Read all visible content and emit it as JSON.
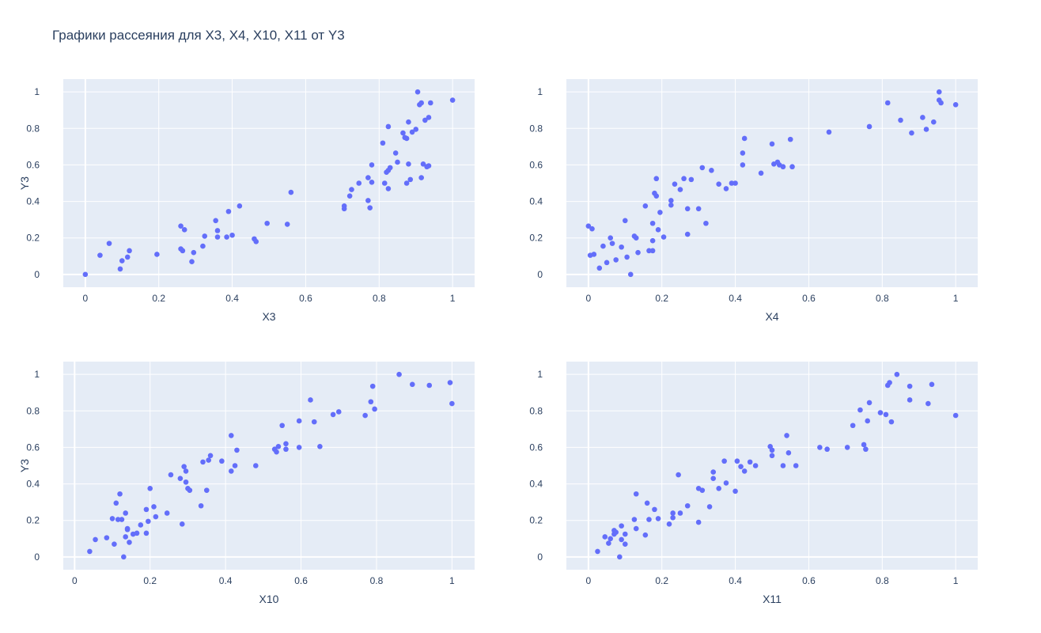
{
  "title": "Графики рассеяния для X3, X4, X10, X11 от Y3",
  "colors": {
    "marker": "#636efa",
    "plot_background": "#e5ecf6",
    "grid": "#ffffff",
    "text": "#2a3f5f"
  },
  "chart_data": [
    {
      "type": "scatter",
      "xlabel": "X3",
      "ylabel": "Y3",
      "xlim": [
        -0.06,
        1.06
      ],
      "ylim": [
        -0.07,
        1.07
      ],
      "xticks": [
        0,
        0.2,
        0.4,
        0.6,
        0.8,
        1
      ],
      "xtick_labels": [
        "0",
        "0.2",
        "0.4",
        "0.6",
        "0.8",
        "1"
      ],
      "yticks": [
        0,
        0.2,
        0.4,
        0.6,
        0.8,
        1
      ],
      "ytick_labels": [
        "0",
        "0.2",
        "0.4",
        "0.6",
        "0.8",
        "1"
      ],
      "grid": true,
      "points": [
        [
          0.0,
          0.0
        ],
        [
          0.04,
          0.105
        ],
        [
          0.065,
          0.17
        ],
        [
          0.095,
          0.03
        ],
        [
          0.1,
          0.075
        ],
        [
          0.115,
          0.095
        ],
        [
          0.12,
          0.13
        ],
        [
          0.195,
          0.11
        ],
        [
          0.26,
          0.14
        ],
        [
          0.26,
          0.265
        ],
        [
          0.265,
          0.13
        ],
        [
          0.27,
          0.245
        ],
        [
          0.29,
          0.07
        ],
        [
          0.295,
          0.12
        ],
        [
          0.32,
          0.155
        ],
        [
          0.325,
          0.21
        ],
        [
          0.355,
          0.295
        ],
        [
          0.36,
          0.24
        ],
        [
          0.36,
          0.205
        ],
        [
          0.385,
          0.205
        ],
        [
          0.39,
          0.345
        ],
        [
          0.4,
          0.215
        ],
        [
          0.42,
          0.375
        ],
        [
          0.46,
          0.195
        ],
        [
          0.465,
          0.18
        ],
        [
          0.495,
          0.28
        ],
        [
          0.55,
          0.275
        ],
        [
          0.56,
          0.45
        ],
        [
          0.705,
          0.375
        ],
        [
          0.705,
          0.36
        ],
        [
          0.72,
          0.43
        ],
        [
          0.725,
          0.465
        ],
        [
          0.745,
          0.5
        ],
        [
          0.77,
          0.53
        ],
        [
          0.77,
          0.405
        ],
        [
          0.775,
          0.365
        ],
        [
          0.78,
          0.6
        ],
        [
          0.78,
          0.505
        ],
        [
          0.81,
          0.72
        ],
        [
          0.815,
          0.5
        ],
        [
          0.82,
          0.56
        ],
        [
          0.825,
          0.47
        ],
        [
          0.825,
          0.57
        ],
        [
          0.825,
          0.81
        ],
        [
          0.83,
          0.585
        ],
        [
          0.845,
          0.665
        ],
        [
          0.85,
          0.615
        ],
        [
          0.865,
          0.775
        ],
        [
          0.87,
          0.75
        ],
        [
          0.875,
          0.5
        ],
        [
          0.875,
          0.745
        ],
        [
          0.88,
          0.605
        ],
        [
          0.88,
          0.835
        ],
        [
          0.885,
          0.52
        ],
        [
          0.89,
          0.78
        ],
        [
          0.9,
          0.795
        ],
        [
          0.905,
          1.0
        ],
        [
          0.91,
          0.93
        ],
        [
          0.915,
          0.94
        ],
        [
          0.915,
          0.53
        ],
        [
          0.92,
          0.605
        ],
        [
          0.925,
          0.845
        ],
        [
          0.93,
          0.59
        ],
        [
          0.935,
          0.86
        ],
        [
          0.935,
          0.595
        ],
        [
          0.94,
          0.94
        ],
        [
          1.0,
          0.955
        ]
      ]
    },
    {
      "type": "scatter",
      "xlabel": "X4",
      "ylabel": "",
      "xlim": [
        -0.06,
        1.06
      ],
      "ylim": [
        -0.07,
        1.07
      ],
      "xticks": [
        0,
        0.2,
        0.4,
        0.6,
        0.8,
        1
      ],
      "xtick_labels": [
        "0",
        "0.2",
        "0.4",
        "0.6",
        "0.8",
        "1"
      ],
      "yticks": [
        0,
        0.2,
        0.4,
        0.6,
        0.8,
        1
      ],
      "ytick_labels": [
        "0",
        "0.2",
        "0.4",
        "0.6",
        "0.8",
        "1"
      ],
      "grid": true,
      "points": [
        [
          0.0,
          0.265
        ],
        [
          0.005,
          0.105
        ],
        [
          0.01,
          0.25
        ],
        [
          0.015,
          0.11
        ],
        [
          0.03,
          0.035
        ],
        [
          0.04,
          0.155
        ],
        [
          0.05,
          0.065
        ],
        [
          0.06,
          0.2
        ],
        [
          0.065,
          0.17
        ],
        [
          0.075,
          0.08
        ],
        [
          0.09,
          0.15
        ],
        [
          0.1,
          0.295
        ],
        [
          0.105,
          0.095
        ],
        [
          0.115,
          0.0
        ],
        [
          0.125,
          0.21
        ],
        [
          0.13,
          0.2
        ],
        [
          0.135,
          0.12
        ],
        [
          0.155,
          0.375
        ],
        [
          0.165,
          0.13
        ],
        [
          0.175,
          0.185
        ],
        [
          0.175,
          0.13
        ],
        [
          0.175,
          0.28
        ],
        [
          0.18,
          0.445
        ],
        [
          0.185,
          0.525
        ],
        [
          0.185,
          0.43
        ],
        [
          0.19,
          0.245
        ],
        [
          0.195,
          0.34
        ],
        [
          0.205,
          0.205
        ],
        [
          0.225,
          0.38
        ],
        [
          0.225,
          0.405
        ],
        [
          0.235,
          0.495
        ],
        [
          0.25,
          0.465
        ],
        [
          0.26,
          0.525
        ],
        [
          0.27,
          0.36
        ],
        [
          0.27,
          0.22
        ],
        [
          0.28,
          0.52
        ],
        [
          0.3,
          0.36
        ],
        [
          0.31,
          0.585
        ],
        [
          0.32,
          0.28
        ],
        [
          0.335,
          0.57
        ],
        [
          0.355,
          0.495
        ],
        [
          0.375,
          0.47
        ],
        [
          0.39,
          0.5
        ],
        [
          0.4,
          0.5
        ],
        [
          0.42,
          0.6
        ],
        [
          0.42,
          0.665
        ],
        [
          0.425,
          0.745
        ],
        [
          0.47,
          0.555
        ],
        [
          0.5,
          0.715
        ],
        [
          0.505,
          0.605
        ],
        [
          0.515,
          0.615
        ],
        [
          0.52,
          0.6
        ],
        [
          0.53,
          0.59
        ],
        [
          0.55,
          0.74
        ],
        [
          0.555,
          0.59
        ],
        [
          0.655,
          0.78
        ],
        [
          0.765,
          0.81
        ],
        [
          0.815,
          0.94
        ],
        [
          0.85,
          0.845
        ],
        [
          0.88,
          0.775
        ],
        [
          0.91,
          0.86
        ],
        [
          0.92,
          0.795
        ],
        [
          0.94,
          0.835
        ],
        [
          0.955,
          1.0
        ],
        [
          0.955,
          0.955
        ],
        [
          0.96,
          0.94
        ],
        [
          1.0,
          0.93
        ]
      ]
    },
    {
      "type": "scatter",
      "xlabel": "X10",
      "ylabel": "Y3",
      "xlim": [
        -0.03,
        1.06
      ],
      "ylim": [
        -0.07,
        1.07
      ],
      "xticks": [
        0,
        0.2,
        0.4,
        0.6,
        0.8,
        1
      ],
      "xtick_labels": [
        "0",
        "0.2",
        "0.4",
        "0.6",
        "0.8",
        "1"
      ],
      "yticks": [
        0,
        0.2,
        0.4,
        0.6,
        0.8,
        1
      ],
      "ytick_labels": [
        "0",
        "0.2",
        "0.4",
        "0.6",
        "0.8",
        "1"
      ],
      "grid": true,
      "points": [
        [
          0.04,
          0.03
        ],
        [
          0.055,
          0.095
        ],
        [
          0.085,
          0.105
        ],
        [
          0.1,
          0.21
        ],
        [
          0.105,
          0.07
        ],
        [
          0.11,
          0.295
        ],
        [
          0.115,
          0.205
        ],
        [
          0.12,
          0.345
        ],
        [
          0.125,
          0.205
        ],
        [
          0.13,
          0.0
        ],
        [
          0.135,
          0.24
        ],
        [
          0.135,
          0.11
        ],
        [
          0.14,
          0.15
        ],
        [
          0.14,
          0.155
        ],
        [
          0.145,
          0.08
        ],
        [
          0.155,
          0.125
        ],
        [
          0.165,
          0.13
        ],
        [
          0.175,
          0.175
        ],
        [
          0.19,
          0.26
        ],
        [
          0.19,
          0.13
        ],
        [
          0.195,
          0.195
        ],
        [
          0.2,
          0.375
        ],
        [
          0.21,
          0.275
        ],
        [
          0.215,
          0.22
        ],
        [
          0.245,
          0.24
        ],
        [
          0.255,
          0.45
        ],
        [
          0.28,
          0.43
        ],
        [
          0.285,
          0.18
        ],
        [
          0.29,
          0.495
        ],
        [
          0.295,
          0.47
        ],
        [
          0.295,
          0.41
        ],
        [
          0.3,
          0.375
        ],
        [
          0.305,
          0.365
        ],
        [
          0.335,
          0.28
        ],
        [
          0.34,
          0.52
        ],
        [
          0.35,
          0.365
        ],
        [
          0.355,
          0.53
        ],
        [
          0.36,
          0.555
        ],
        [
          0.39,
          0.525
        ],
        [
          0.415,
          0.665
        ],
        [
          0.415,
          0.47
        ],
        [
          0.425,
          0.5
        ],
        [
          0.43,
          0.585
        ],
        [
          0.48,
          0.5
        ],
        [
          0.53,
          0.59
        ],
        [
          0.535,
          0.575
        ],
        [
          0.54,
          0.605
        ],
        [
          0.55,
          0.72
        ],
        [
          0.56,
          0.62
        ],
        [
          0.56,
          0.59
        ],
        [
          0.595,
          0.6
        ],
        [
          0.595,
          0.745
        ],
        [
          0.625,
          0.86
        ],
        [
          0.635,
          0.74
        ],
        [
          0.65,
          0.605
        ],
        [
          0.685,
          0.78
        ],
        [
          0.7,
          0.795
        ],
        [
          0.77,
          0.775
        ],
        [
          0.785,
          0.85
        ],
        [
          0.79,
          0.935
        ],
        [
          0.795,
          0.81
        ],
        [
          0.86,
          1.0
        ],
        [
          0.895,
          0.945
        ],
        [
          0.94,
          0.94
        ],
        [
          0.995,
          0.955
        ],
        [
          1.0,
          0.84
        ]
      ]
    },
    {
      "type": "scatter",
      "xlabel": "X11",
      "ylabel": "",
      "xlim": [
        -0.06,
        1.06
      ],
      "ylim": [
        -0.07,
        1.07
      ],
      "xticks": [
        0,
        0.2,
        0.4,
        0.6,
        0.8,
        1
      ],
      "xtick_labels": [
        "0",
        "0.2",
        "0.4",
        "0.6",
        "0.8",
        "1"
      ],
      "yticks": [
        0,
        0.2,
        0.4,
        0.6,
        0.8,
        1
      ],
      "ytick_labels": [
        "0",
        "0.2",
        "0.4",
        "0.6",
        "0.8",
        "1"
      ],
      "grid": true,
      "points": [
        [
          0.025,
          0.03
        ],
        [
          0.045,
          0.11
        ],
        [
          0.055,
          0.075
        ],
        [
          0.06,
          0.1
        ],
        [
          0.07,
          0.125
        ],
        [
          0.07,
          0.145
        ],
        [
          0.075,
          0.135
        ],
        [
          0.085,
          0.0
        ],
        [
          0.09,
          0.17
        ],
        [
          0.09,
          0.095
        ],
        [
          0.1,
          0.07
        ],
        [
          0.1,
          0.125
        ],
        [
          0.125,
          0.205
        ],
        [
          0.13,
          0.155
        ],
        [
          0.13,
          0.345
        ],
        [
          0.155,
          0.12
        ],
        [
          0.16,
          0.295
        ],
        [
          0.165,
          0.205
        ],
        [
          0.18,
          0.26
        ],
        [
          0.19,
          0.21
        ],
        [
          0.22,
          0.18
        ],
        [
          0.23,
          0.24
        ],
        [
          0.23,
          0.215
        ],
        [
          0.245,
          0.45
        ],
        [
          0.25,
          0.24
        ],
        [
          0.27,
          0.28
        ],
        [
          0.3,
          0.375
        ],
        [
          0.3,
          0.19
        ],
        [
          0.31,
          0.365
        ],
        [
          0.33,
          0.275
        ],
        [
          0.34,
          0.465
        ],
        [
          0.34,
          0.43
        ],
        [
          0.355,
          0.375
        ],
        [
          0.37,
          0.525
        ],
        [
          0.375,
          0.405
        ],
        [
          0.4,
          0.36
        ],
        [
          0.405,
          0.525
        ],
        [
          0.415,
          0.495
        ],
        [
          0.425,
          0.47
        ],
        [
          0.44,
          0.52
        ],
        [
          0.455,
          0.5
        ],
        [
          0.495,
          0.605
        ],
        [
          0.5,
          0.555
        ],
        [
          0.5,
          0.585
        ],
        [
          0.53,
          0.5
        ],
        [
          0.54,
          0.665
        ],
        [
          0.545,
          0.57
        ],
        [
          0.565,
          0.5
        ],
        [
          0.63,
          0.6
        ],
        [
          0.65,
          0.59
        ],
        [
          0.705,
          0.6
        ],
        [
          0.72,
          0.72
        ],
        [
          0.74,
          0.805
        ],
        [
          0.75,
          0.615
        ],
        [
          0.755,
          0.59
        ],
        [
          0.76,
          0.745
        ],
        [
          0.765,
          0.845
        ],
        [
          0.795,
          0.79
        ],
        [
          0.81,
          0.78
        ],
        [
          0.815,
          0.94
        ],
        [
          0.82,
          0.955
        ],
        [
          0.825,
          0.74
        ],
        [
          0.84,
          1.0
        ],
        [
          0.875,
          0.86
        ],
        [
          0.875,
          0.935
        ],
        [
          0.925,
          0.84
        ],
        [
          0.935,
          0.945
        ],
        [
          1.0,
          0.775
        ]
      ]
    }
  ]
}
